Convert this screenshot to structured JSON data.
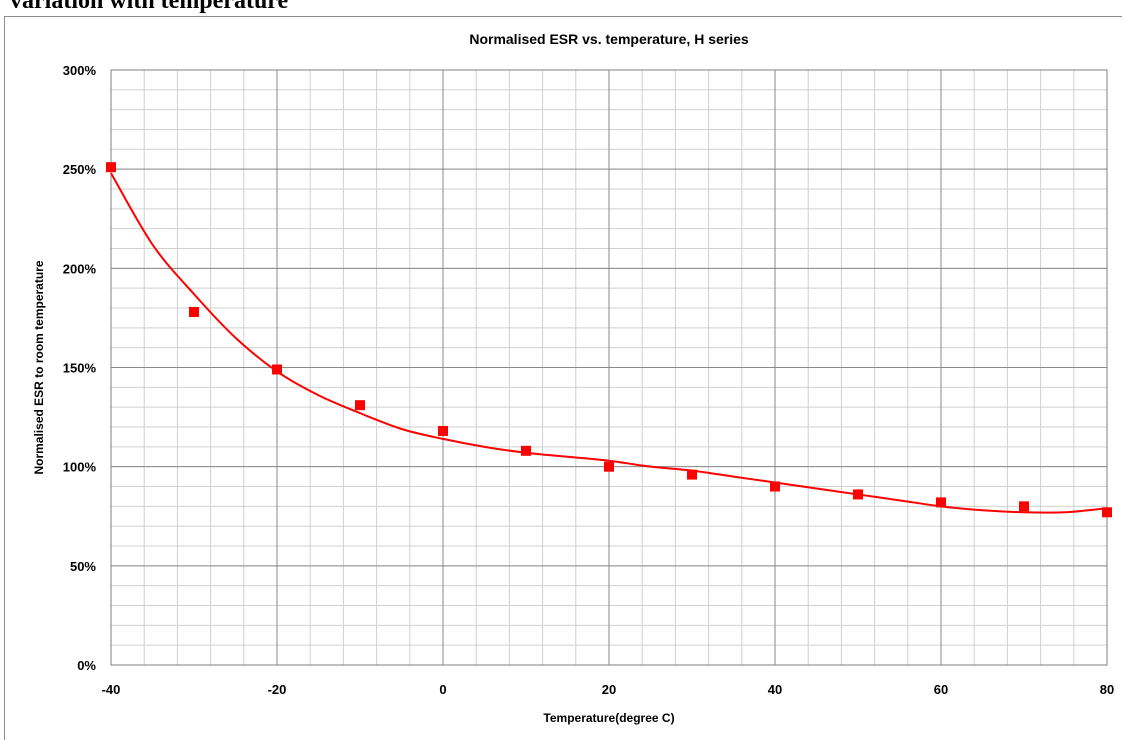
{
  "page": {
    "heading": "variation with temperature"
  },
  "chart_data": {
    "type": "scatter",
    "title": "Normalised ESR vs. temperature, H series",
    "xlabel": "Temperature(degree C)",
    "ylabel": "Normalised ESR to room temperature",
    "xlim": [
      -40,
      80
    ],
    "ylim": [
      0,
      300
    ],
    "x_ticks": [
      -40,
      -20,
      0,
      20,
      40,
      60,
      80
    ],
    "x_tick_labels": [
      "-40",
      "-20",
      "0",
      "20",
      "40",
      "60",
      "80"
    ],
    "y_ticks": [
      0,
      50,
      100,
      150,
      200,
      250,
      300
    ],
    "y_tick_labels": [
      "0%",
      "50%",
      "100%",
      "150%",
      "200%",
      "250%",
      "300%"
    ],
    "grid": true,
    "legend": "none",
    "series": [
      {
        "marker": "square",
        "color": "#ff0000",
        "x": [
          -40,
          -30,
          -20,
          -10,
          0,
          10,
          20,
          30,
          40,
          50,
          60,
          70,
          80
        ],
        "y": [
          251,
          178,
          149,
          131,
          118,
          108,
          100,
          96,
          90,
          86,
          82,
          80,
          77
        ]
      }
    ],
    "trendline": {
      "type": "polynomial",
      "color": "#ff0000",
      "x": [
        -40,
        -35,
        -30,
        -25,
        -20,
        -15,
        -10,
        -5,
        0,
        5,
        10,
        15,
        20,
        25,
        30,
        35,
        40,
        45,
        50,
        55,
        60,
        65,
        70,
        75,
        80
      ],
      "y": [
        248,
        212,
        187,
        165,
        148,
        136,
        127,
        119,
        114,
        110,
        107,
        105,
        103,
        100,
        98,
        95,
        92,
        89,
        86,
        83,
        80,
        78,
        77,
        77,
        79
      ]
    }
  }
}
